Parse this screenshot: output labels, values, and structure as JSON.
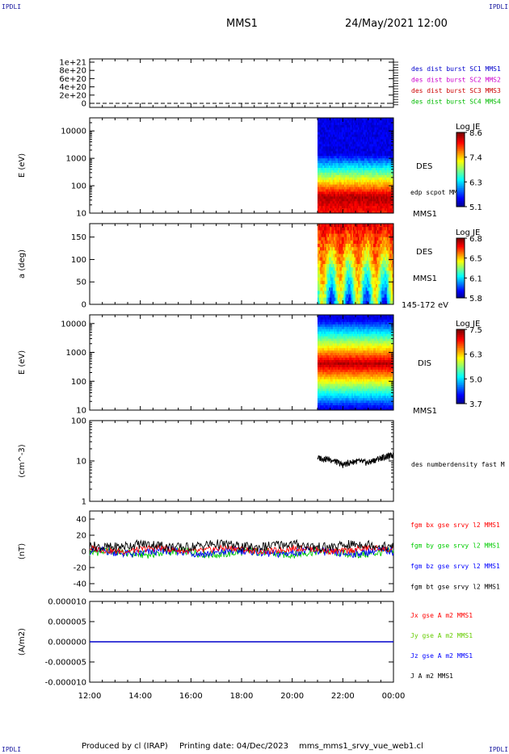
{
  "corner_labels": {
    "top_left": "IPDLI",
    "top_right": "IPDLI",
    "bottom_left": "IPDLI",
    "bottom_right": "IPDLI"
  },
  "header": {
    "spacecraft": "MMS1",
    "datetime": "24/May/2021 12:00"
  },
  "footer": {
    "produced_by": "Produced by cl (IRAP)",
    "printing_date": "Printing date: 04/Dec/2023",
    "filename": "mms_mms1_srvy_vue_web1.cl"
  },
  "time_axis": {
    "ticks": [
      "12:00",
      "14:00",
      "16:00",
      "18:00",
      "20:00",
      "22:00",
      "00:00"
    ],
    "data_start_hour": 21.0,
    "end_hour": 24.0
  },
  "chart_data": [
    {
      "type": "line",
      "id": "des-dist-burst",
      "ytick_labels": [
        "1e+21",
        "8e+20",
        "6e+20",
        "4e+20",
        "2e+20",
        "0"
      ],
      "ylim": [
        0,
        1e+21
      ],
      "legend": [
        {
          "label": "des dist burst SC1 MMS1",
          "color": "#0000cc"
        },
        {
          "label": "des dist burst SC2 MMS2",
          "color": "#cc00cc"
        },
        {
          "label": "des dist burst SC3 MMS3",
          "color": "#cc0000"
        },
        {
          "label": "des dist burst SC4 MMS4",
          "color": "#00bb00"
        }
      ],
      "series": [
        {
          "name": "des dist burst SC1 MMS1",
          "values": [
            0,
            0
          ]
        }
      ]
    },
    {
      "type": "heatmap",
      "id": "des-energy",
      "ylabel": "E (eV)",
      "yscale": "log",
      "ytick_labels": [
        "10000",
        "1000",
        "100",
        "10"
      ],
      "ylim": [
        10,
        30000
      ],
      "side_labels": {
        "instrument": "DES",
        "overlay": "edp scpot MMS1",
        "spacecraft": "MMS1"
      },
      "colorbar": {
        "title": "Log JE",
        "ticks": [
          "8.6",
          "7.4",
          "6.3",
          "5.1"
        ],
        "range": [
          5.1,
          8.6
        ]
      },
      "x_range": [
        21.0,
        24.0
      ],
      "peak_energy_eV": 40
    },
    {
      "type": "heatmap",
      "id": "des-pitch-angle",
      "ylabel": "a (deg)",
      "ytick_labels": [
        "150",
        "100",
        "50",
        "0"
      ],
      "ylim": [
        0,
        180
      ],
      "side_labels": {
        "instrument": "DES",
        "spacecraft": "MMS1",
        "energy_band": "145-172 eV"
      },
      "colorbar": {
        "title": "Log JE",
        "ticks": [
          "6.8",
          "6.5",
          "6.1",
          "5.8"
        ],
        "range": [
          5.8,
          6.8
        ]
      },
      "x_range": [
        21.0,
        24.0
      ]
    },
    {
      "type": "heatmap",
      "id": "dis-energy",
      "ylabel": "E (eV)",
      "yscale": "log",
      "ytick_labels": [
        "10000",
        "1000",
        "100",
        "10"
      ],
      "ylim": [
        10,
        20000
      ],
      "side_labels": {
        "instrument": "DIS",
        "spacecraft": "MMS1"
      },
      "colorbar": {
        "title": "Log JE",
        "ticks": [
          "7.5",
          "6.3",
          "5.0",
          "3.7"
        ],
        "range": [
          3.7,
          7.5
        ]
      },
      "x_range": [
        21.0,
        24.0
      ],
      "peak_energy_eV": 400
    },
    {
      "type": "line",
      "id": "des-density",
      "ylabel": "(cm^-3)",
      "yscale": "log",
      "ytick_labels": [
        "100",
        "10",
        "1"
      ],
      "ylim": [
        1,
        100
      ],
      "legend": [
        {
          "label": "des numberdensity fast M",
          "color": "#000000"
        }
      ],
      "series": [
        {
          "name": "des numberdensity fast M",
          "x": [
            21.0,
            21.5,
            22.0,
            22.5,
            23.0,
            23.5,
            24.0
          ],
          "values": [
            12,
            11,
            8,
            10,
            9,
            12,
            14
          ]
        }
      ]
    },
    {
      "type": "line",
      "id": "fgm-b",
      "ylabel": "(nT)",
      "ytick_labels": [
        "40",
        "20",
        "0",
        "-20",
        "-40"
      ],
      "ylim": [
        -50,
        50
      ],
      "legend": [
        {
          "label": "fgm bx gse srvy l2 MMS1",
          "color": "#ff0000"
        },
        {
          "label": "fgm by gse srvy l2 MMS1",
          "color": "#00cc00"
        },
        {
          "label": "fgm bz gse srvy l2 MMS1",
          "color": "#0000ff"
        },
        {
          "label": "fgm bt gse srvy l2 MMS1",
          "color": "#000000"
        }
      ],
      "series": [
        {
          "name": "fgm bt gse srvy l2 MMS1",
          "mean": 7,
          "spread": 6
        },
        {
          "name": "fgm bx gse srvy l2 MMS1",
          "mean": 2,
          "spread": 4
        },
        {
          "name": "fgm by gse srvy l2 MMS1",
          "mean": -2,
          "spread": 5
        },
        {
          "name": "fgm bz gse srvy l2 MMS1",
          "mean": -1,
          "spread": 5
        }
      ]
    },
    {
      "type": "line",
      "id": "current-density",
      "ylabel": "(A/m2)",
      "ytick_labels": [
        "0.000010",
        "0.000005",
        "0.000000",
        "-0.000005",
        "-0.000010"
      ],
      "ylim": [
        -1e-05,
        1e-05
      ],
      "legend": [
        {
          "label": "Jx gse A m2 MMS1",
          "color": "#ff0000"
        },
        {
          "label": "Jy gse A m2 MMS1",
          "color": "#66cc00"
        },
        {
          "label": "Jz gse A m2 MMS1",
          "color": "#0000ff"
        },
        {
          "label": "J A m2 MMS1",
          "color": "#000000"
        }
      ],
      "series": [
        {
          "name": "J A m2 MMS1",
          "values": [
            0,
            0
          ]
        }
      ]
    }
  ]
}
